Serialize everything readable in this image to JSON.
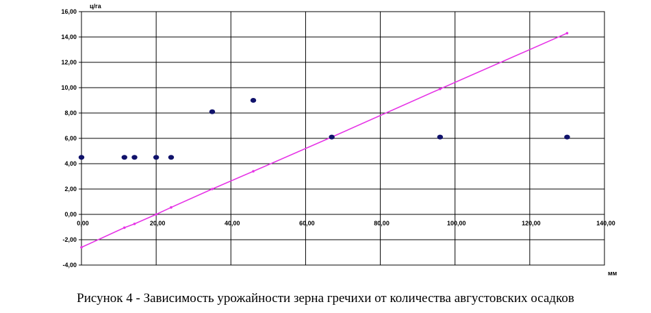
{
  "caption": "Рисунок 4 - Зависимость урожайности зерна гречихи от количества августовских осадков",
  "chart_data": {
    "type": "scatter",
    "title": "",
    "xlabel": "мм",
    "ylabel": "ц/га",
    "xlim": [
      0,
      140
    ],
    "ylim": [
      -4,
      16
    ],
    "x_ticks": [
      "0,00",
      "20,00",
      "40,00",
      "60,00",
      "80,00",
      "100,00",
      "120,00",
      "140,00"
    ],
    "y_ticks": [
      "-4,00",
      "-2,00",
      "0,00",
      "2,00",
      "4,00",
      "6,00",
      "8,00",
      "10,00",
      "12,00",
      "14,00",
      "16,00"
    ],
    "grid": true,
    "legend": "none",
    "colors": {
      "points": "#10126b",
      "trend": "#e633e6"
    },
    "series": [
      {
        "type": "scatter",
        "x": [
          0,
          11.5,
          14.2,
          20,
          24,
          35,
          46,
          67,
          96,
          130
        ],
        "y": [
          4.5,
          4.5,
          4.5,
          4.5,
          4.5,
          8.1,
          9.0,
          6.1,
          6.1,
          6.1
        ]
      },
      {
        "type": "line",
        "x": [
          0,
          11.5,
          14.2,
          20,
          24,
          35,
          46,
          67,
          96,
          130
        ],
        "y": [
          -2.6,
          -1.05,
          -0.75,
          0.0,
          0.55,
          2.0,
          3.4,
          6.1,
          9.9,
          14.3
        ]
      }
    ]
  }
}
